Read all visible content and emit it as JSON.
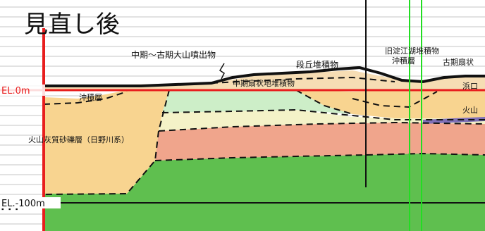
{
  "title": "見直し後",
  "elevation_labels": {
    "el0": "EL.0m",
    "el_minus100": "EL.-100m",
    "partial_m": "m"
  },
  "labels": {
    "middle_late_daisen": "中期〜古期大山噴出物",
    "terrace": "段丘堆積物",
    "old_lake": "旧淀江湖堆積物",
    "alluvium_right": "沖積層",
    "old_fan": "古期扇状",
    "alluvium_left": "沖積層",
    "middle_fan": "中期扇状地堆積物",
    "hiyama_right_top": "浜口",
    "volcanic_right": "火山",
    "volcanic_gravel": "火山灰質砂礫層（日野川系）"
  },
  "colors": {
    "red_line": "#e81e1e",
    "green_line": "#22dd22",
    "green_base": "#5fbf4f",
    "salmon": "#f0a58c",
    "orange": "#f8d490",
    "mint": "#cdeec8",
    "pale_yellow": "#f4f2c8",
    "light_blue": "#b8e0f0",
    "purple": "#7f70b8"
  }
}
